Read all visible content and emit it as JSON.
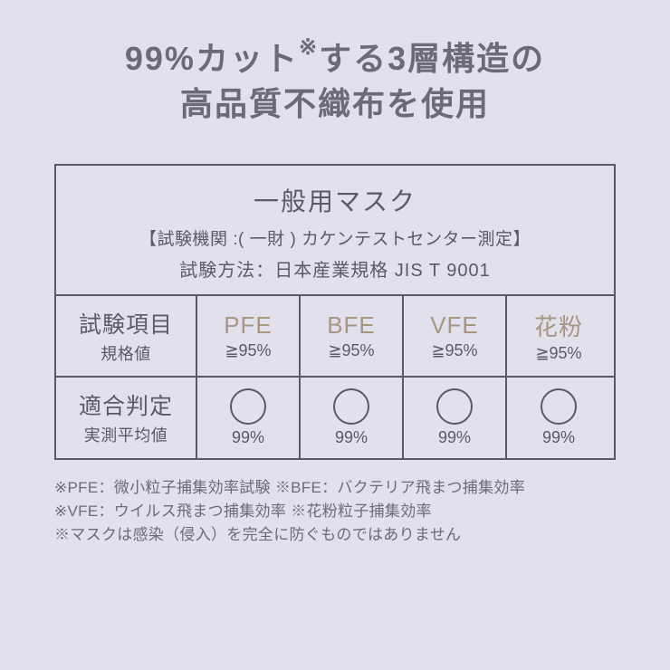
{
  "headline": {
    "line1_a": "99%カット",
    "line1_sup": "※",
    "line1_b": "する3層構造の",
    "line2": "高品質不織布を使用"
  },
  "table": {
    "title": "一般用マスク",
    "sub1": "【試験機関 :( 一財 ) カケンテストセンター測定】",
    "sub2": "試験方法：日本産業規格 JIS T 9001",
    "row1_label_big": "試験項目",
    "row1_label_small": "規格値",
    "row2_label_big": "適合判定",
    "row2_label_small": "実測平均値",
    "columns": [
      {
        "name": "PFE",
        "spec": "≧95%",
        "result": "99%"
      },
      {
        "name": "BFE",
        "spec": "≧95%",
        "result": "99%"
      },
      {
        "name": "VFE",
        "spec": "≧95%",
        "result": "99%"
      },
      {
        "name": "花粉",
        "spec": "≧95%",
        "result": "99%"
      }
    ]
  },
  "footnotes": {
    "line1": "※PFE：微小粒子捕集効率試験 ※BFE：バクテリア飛まつ捕集効率",
    "line2": "※VFE：ウイルス飛まつ捕集効率 ※花粉粒子捕集効率",
    "line3": "※マスクは感染（侵入）を完全に防ぐものではありません"
  },
  "colors": {
    "background": "#e2e0ec",
    "text": "#5a5a66",
    "column_name": "#a69682",
    "border": "#5a5a66"
  }
}
